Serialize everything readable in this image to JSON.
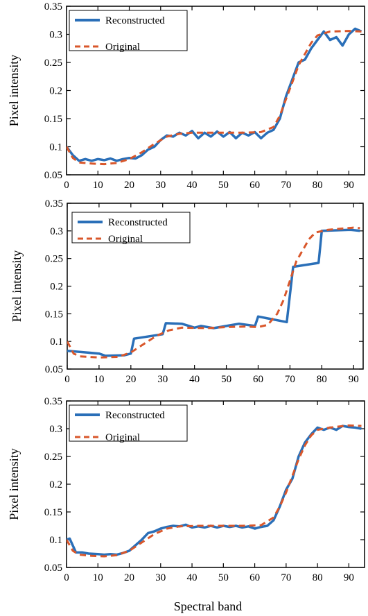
{
  "figure": {
    "xlabel": "Spectral band"
  },
  "chart_data": [
    {
      "type": "line",
      "title": "",
      "xlabel": "",
      "ylabel": "Pixel intensity",
      "xlim": [
        0,
        95
      ],
      "ylim": [
        0.05,
        0.35
      ],
      "xticks": [
        0,
        10,
        20,
        30,
        40,
        50,
        60,
        70,
        80,
        90
      ],
      "yticks": [
        0.05,
        0.1,
        0.15,
        0.2,
        0.25,
        0.3,
        0.35
      ],
      "ytick_labels": [
        "0.05",
        "0.1",
        "0.15",
        "0.2",
        "0.25",
        "0.3",
        "0.35"
      ],
      "grid": false,
      "legend": "top-left",
      "series": [
        {
          "name": "Reconstructed",
          "color": "#2a6fb8",
          "style": "solid",
          "points": [
            [
              0,
              0.1
            ],
            [
              2,
              0.085
            ],
            [
              4,
              0.075
            ],
            [
              6,
              0.078
            ],
            [
              8,
              0.075
            ],
            [
              10,
              0.078
            ],
            [
              12,
              0.076
            ],
            [
              14,
              0.079
            ],
            [
              16,
              0.075
            ],
            [
              18,
              0.078
            ],
            [
              20,
              0.08
            ],
            [
              22,
              0.079
            ],
            [
              24,
              0.085
            ],
            [
              26,
              0.095
            ],
            [
              28,
              0.1
            ],
            [
              30,
              0.112
            ],
            [
              32,
              0.12
            ],
            [
              34,
              0.118
            ],
            [
              36,
              0.125
            ],
            [
              38,
              0.12
            ],
            [
              40,
              0.128
            ],
            [
              42,
              0.115
            ],
            [
              44,
              0.125
            ],
            [
              46,
              0.118
            ],
            [
              48,
              0.127
            ],
            [
              50,
              0.118
            ],
            [
              52,
              0.126
            ],
            [
              54,
              0.115
            ],
            [
              56,
              0.125
            ],
            [
              58,
              0.12
            ],
            [
              60,
              0.126
            ],
            [
              62,
              0.115
            ],
            [
              64,
              0.125
            ],
            [
              66,
              0.13
            ],
            [
              68,
              0.15
            ],
            [
              70,
              0.19
            ],
            [
              72,
              0.22
            ],
            [
              74,
              0.25
            ],
            [
              76,
              0.255
            ],
            [
              78,
              0.275
            ],
            [
              80,
              0.29
            ],
            [
              82,
              0.305
            ],
            [
              84,
              0.29
            ],
            [
              86,
              0.295
            ],
            [
              88,
              0.28
            ],
            [
              90,
              0.3
            ],
            [
              92,
              0.31
            ],
            [
              94,
              0.305
            ]
          ]
        },
        {
          "name": "Original",
          "color": "#d9572b",
          "style": "dashed",
          "points": [
            [
              0,
              0.1
            ],
            [
              2,
              0.08
            ],
            [
              4,
              0.072
            ],
            [
              8,
              0.07
            ],
            [
              12,
              0.069
            ],
            [
              16,
              0.071
            ],
            [
              20,
              0.078
            ],
            [
              24,
              0.09
            ],
            [
              28,
              0.105
            ],
            [
              32,
              0.118
            ],
            [
              36,
              0.123
            ],
            [
              40,
              0.125
            ],
            [
              48,
              0.125
            ],
            [
              56,
              0.125
            ],
            [
              62,
              0.126
            ],
            [
              66,
              0.135
            ],
            [
              68,
              0.155
            ],
            [
              70,
              0.185
            ],
            [
              72,
              0.215
            ],
            [
              74,
              0.245
            ],
            [
              76,
              0.265
            ],
            [
              78,
              0.285
            ],
            [
              80,
              0.298
            ],
            [
              84,
              0.305
            ],
            [
              90,
              0.306
            ],
            [
              94,
              0.305
            ]
          ]
        }
      ]
    },
    {
      "type": "line",
      "title": "",
      "xlabel": "",
      "ylabel": "Pixel intensity",
      "xlim": [
        0,
        93
      ],
      "ylim": [
        0.05,
        0.35
      ],
      "xticks": [
        0,
        10,
        20,
        30,
        40,
        50,
        60,
        70,
        80,
        90
      ],
      "yticks": [
        0.05,
        0.1,
        0.15,
        0.2,
        0.25,
        0.3,
        0.35
      ],
      "ytick_labels": [
        "0.05",
        "0.1",
        "0.15",
        "0.2",
        "0.25",
        "0.3",
        "0.35"
      ],
      "grid": false,
      "legend": "top-left",
      "series": [
        {
          "name": "Reconstructed",
          "color": "#2a6fb8",
          "style": "solid",
          "points": [
            [
              0,
              0.083
            ],
            [
              10,
              0.078
            ],
            [
              12,
              0.074
            ],
            [
              18,
              0.075
            ],
            [
              20,
              0.078
            ],
            [
              21,
              0.105
            ],
            [
              30,
              0.113
            ],
            [
              31,
              0.133
            ],
            [
              36,
              0.132
            ],
            [
              40,
              0.125
            ],
            [
              42,
              0.128
            ],
            [
              46,
              0.124
            ],
            [
              50,
              0.128
            ],
            [
              54,
              0.132
            ],
            [
              59,
              0.128
            ],
            [
              60,
              0.145
            ],
            [
              69,
              0.135
            ],
            [
              71,
              0.235
            ],
            [
              79,
              0.242
            ],
            [
              80,
              0.3
            ],
            [
              89,
              0.302
            ],
            [
              92,
              0.3
            ]
          ]
        },
        {
          "name": "Original",
          "color": "#d9572b",
          "style": "dashed",
          "points": [
            [
              0,
              0.1
            ],
            [
              2,
              0.078
            ],
            [
              4,
              0.073
            ],
            [
              10,
              0.071
            ],
            [
              16,
              0.072
            ],
            [
              20,
              0.08
            ],
            [
              24,
              0.095
            ],
            [
              28,
              0.11
            ],
            [
              32,
              0.12
            ],
            [
              36,
              0.125
            ],
            [
              44,
              0.124
            ],
            [
              50,
              0.126
            ],
            [
              56,
              0.127
            ],
            [
              60,
              0.126
            ],
            [
              63,
              0.13
            ],
            [
              66,
              0.15
            ],
            [
              68,
              0.175
            ],
            [
              70,
              0.21
            ],
            [
              72,
              0.245
            ],
            [
              74,
              0.265
            ],
            [
              76,
              0.285
            ],
            [
              78,
              0.297
            ],
            [
              82,
              0.302
            ],
            [
              90,
              0.306
            ],
            [
              92,
              0.305
            ]
          ]
        }
      ]
    },
    {
      "type": "line",
      "title": "",
      "xlabel": "",
      "ylabel": "Pixel intensity",
      "xlim": [
        0,
        95
      ],
      "ylim": [
        0.05,
        0.35
      ],
      "xticks": [
        0,
        10,
        20,
        30,
        40,
        50,
        60,
        70,
        80,
        90
      ],
      "yticks": [
        0.05,
        0.1,
        0.15,
        0.2,
        0.25,
        0.3,
        0.35
      ],
      "ytick_labels": [
        "0.05",
        "0.1",
        "0.15",
        "0.2",
        "0.25",
        "0.3",
        "0.35"
      ],
      "grid": false,
      "legend": "top-left",
      "series": [
        {
          "name": "Reconstructed",
          "color": "#2a6fb8",
          "style": "solid",
          "points": [
            [
              0,
              0.1
            ],
            [
              1,
              0.102
            ],
            [
              3,
              0.077
            ],
            [
              5,
              0.077
            ],
            [
              7,
              0.075
            ],
            [
              10,
              0.074
            ],
            [
              12,
              0.073
            ],
            [
              14,
              0.074
            ],
            [
              16,
              0.073
            ],
            [
              18,
              0.076
            ],
            [
              20,
              0.08
            ],
            [
              22,
              0.09
            ],
            [
              24,
              0.1
            ],
            [
              26,
              0.112
            ],
            [
              28,
              0.115
            ],
            [
              30,
              0.12
            ],
            [
              32,
              0.123
            ],
            [
              34,
              0.125
            ],
            [
              36,
              0.124
            ],
            [
              38,
              0.127
            ],
            [
              40,
              0.122
            ],
            [
              42,
              0.124
            ],
            [
              44,
              0.122
            ],
            [
              46,
              0.125
            ],
            [
              48,
              0.122
            ],
            [
              50,
              0.125
            ],
            [
              52,
              0.123
            ],
            [
              54,
              0.125
            ],
            [
              56,
              0.122
            ],
            [
              58,
              0.124
            ],
            [
              60,
              0.12
            ],
            [
              62,
              0.123
            ],
            [
              64,
              0.125
            ],
            [
              66,
              0.135
            ],
            [
              68,
              0.16
            ],
            [
              70,
              0.19
            ],
            [
              72,
              0.21
            ],
            [
              74,
              0.25
            ],
            [
              76,
              0.275
            ],
            [
              78,
              0.29
            ],
            [
              80,
              0.302
            ],
            [
              82,
              0.298
            ],
            [
              84,
              0.302
            ],
            [
              86,
              0.298
            ],
            [
              88,
              0.305
            ],
            [
              90,
              0.303
            ],
            [
              92,
              0.302
            ],
            [
              94,
              0.3
            ]
          ]
        },
        {
          "name": "Original",
          "color": "#d9572b",
          "style": "dashed",
          "points": [
            [
              0,
              0.1
            ],
            [
              2,
              0.08
            ],
            [
              4,
              0.073
            ],
            [
              8,
              0.071
            ],
            [
              12,
              0.07
            ],
            [
              16,
              0.072
            ],
            [
              20,
              0.08
            ],
            [
              24,
              0.095
            ],
            [
              28,
              0.11
            ],
            [
              32,
              0.12
            ],
            [
              36,
              0.124
            ],
            [
              42,
              0.125
            ],
            [
              50,
              0.125
            ],
            [
              56,
              0.125
            ],
            [
              62,
              0.126
            ],
            [
              66,
              0.14
            ],
            [
              68,
              0.16
            ],
            [
              70,
              0.185
            ],
            [
              72,
              0.215
            ],
            [
              74,
              0.245
            ],
            [
              76,
              0.27
            ],
            [
              78,
              0.288
            ],
            [
              80,
              0.298
            ],
            [
              84,
              0.302
            ],
            [
              90,
              0.306
            ],
            [
              94,
              0.305
            ]
          ]
        }
      ]
    }
  ]
}
